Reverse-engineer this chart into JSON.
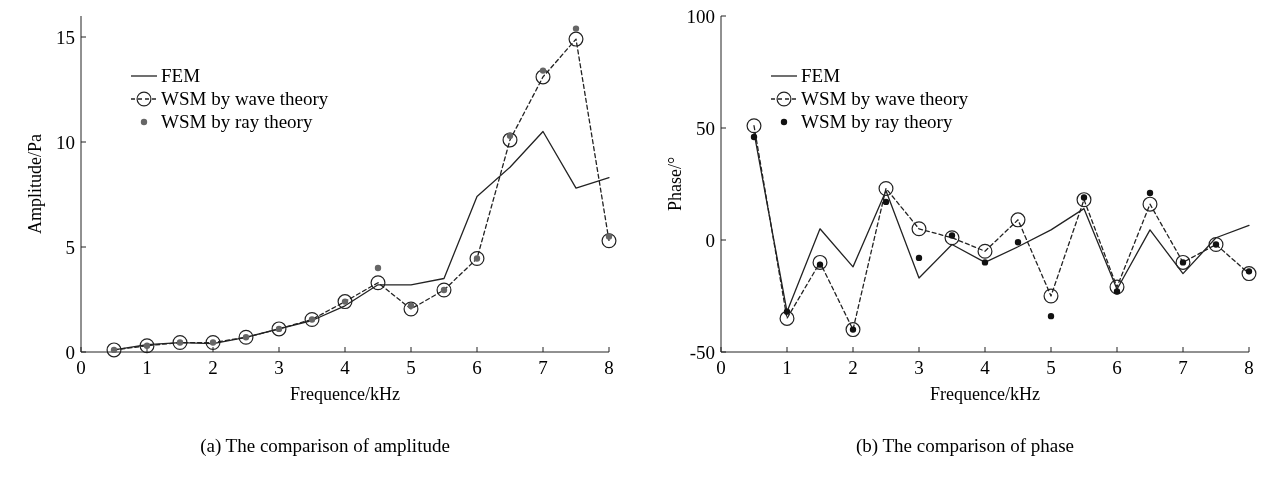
{
  "chart_data": [
    {
      "type": "line",
      "title": "(a) The comparison of amplitude",
      "xlabel": "Frequence/kHz",
      "ylabel": "Amplitude/Pa",
      "x": [
        0.5,
        1,
        1.5,
        2,
        2.5,
        3,
        3.5,
        4,
        4.5,
        5,
        5.5,
        6,
        6.5,
        7,
        7.5,
        8
      ],
      "xlim": [
        0,
        8
      ],
      "xticks": [
        0,
        1,
        2,
        3,
        4,
        5,
        6,
        7,
        8
      ],
      "ylim": [
        0,
        16
      ],
      "yticks": [
        0,
        5,
        10,
        15
      ],
      "grid": false,
      "legend": "top left",
      "series": [
        {
          "name": "FEM",
          "color": "#222222",
          "line_style": "solid",
          "marker": "none",
          "values": [
            0.1,
            0.35,
            0.45,
            0.4,
            0.7,
            1.1,
            1.5,
            2.2,
            3.2,
            3.2,
            3.5,
            7.4,
            8.8,
            10.5,
            7.8,
            8.3
          ]
        },
        {
          "name": "WSM by wave theory",
          "color": "#222222",
          "line_style": "dashed",
          "marker": "circle",
          "values": [
            0.1,
            0.3,
            0.45,
            0.45,
            0.7,
            1.1,
            1.55,
            2.4,
            3.3,
            2.05,
            2.95,
            4.45,
            10.1,
            13.1,
            14.9,
            5.3
          ]
        },
        {
          "name": "WSM by ray theory",
          "type": "scatter",
          "color": "#666666",
          "marker": "circle",
          "values": [
            0.1,
            0.3,
            0.45,
            0.45,
            0.7,
            1.1,
            1.55,
            2.4,
            4.0,
            2.2,
            2.95,
            4.45,
            10.3,
            13.4,
            15.4,
            5.5
          ]
        }
      ]
    },
    {
      "type": "line",
      "title": "(b) The comparison of phase",
      "xlabel": "Frequence/kHz",
      "ylabel": "Phase/°",
      "x": [
        0.5,
        1,
        1.5,
        2,
        2.5,
        3,
        3.5,
        4,
        4.5,
        5,
        5.5,
        6,
        6.5,
        7,
        7.5,
        8
      ],
      "xlim": [
        0,
        8
      ],
      "xticks": [
        0,
        1,
        2,
        3,
        4,
        5,
        6,
        7,
        8
      ],
      "ylim": [
        -50,
        100
      ],
      "yticks": [
        -50,
        0,
        50,
        100
      ],
      "grid": false,
      "legend": "top left",
      "series": [
        {
          "name": "FEM",
          "color": "#222222",
          "line_style": "solid",
          "marker": "none",
          "values": [
            48,
            -32,
            5,
            -12,
            22,
            -17,
            -2,
            -10,
            -3,
            4.5,
            14,
            -22,
            4.5,
            -15,
            1,
            6.5
          ]
        },
        {
          "name": "WSM by wave theory",
          "color": "#222222",
          "line_style": "dashed",
          "marker": "circle",
          "values": [
            51,
            -35,
            -10,
            -40,
            23,
            5,
            1,
            -5,
            9,
            -25,
            18,
            -21,
            16,
            -10,
            -2,
            -15
          ]
        },
        {
          "name": "WSM by ray theory",
          "type": "scatter",
          "color": "#111111",
          "marker": "circle",
          "values": [
            46,
            -32,
            -11,
            -40,
            17,
            -8,
            2,
            -10,
            -1,
            -34,
            19,
            -23,
            21,
            -10,
            -2,
            -14
          ]
        }
      ]
    }
  ]
}
